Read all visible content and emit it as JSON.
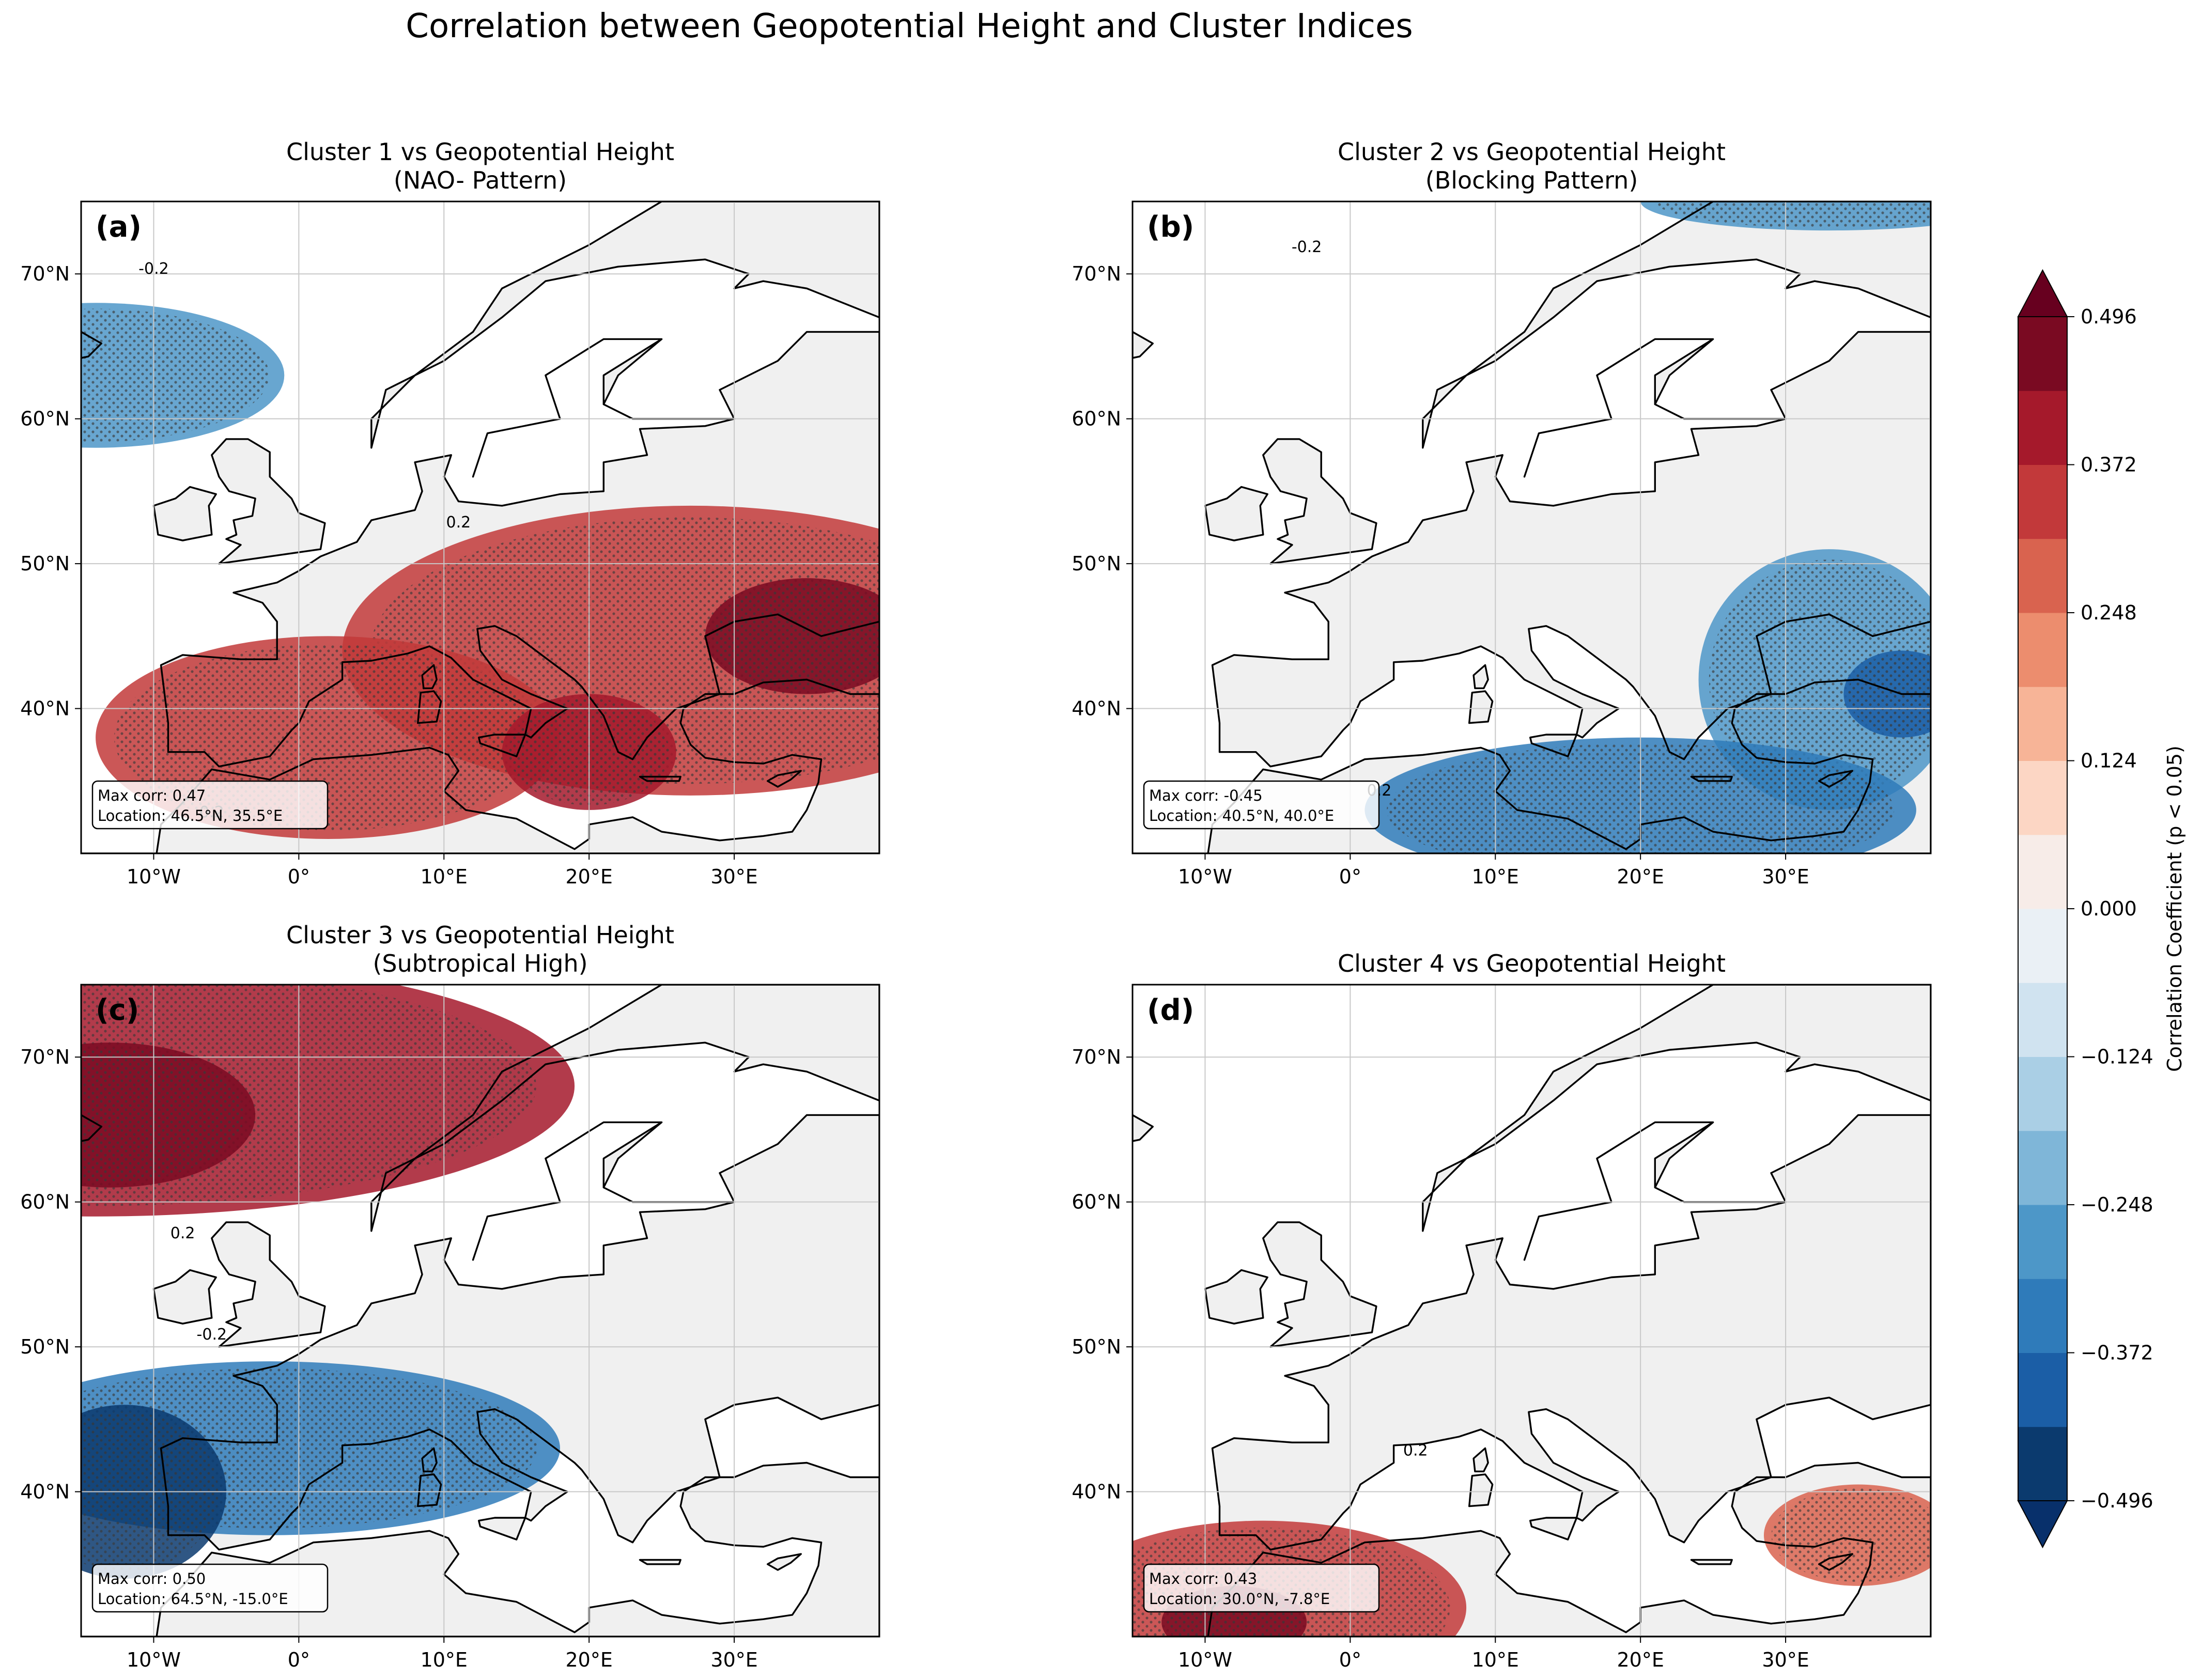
{
  "figure": {
    "title": "Correlation between Geopotential Height and Cluster Indices"
  },
  "map_extent": {
    "lon": [
      -15,
      40
    ],
    "lat": [
      30,
      75
    ]
  },
  "axes": {
    "lon_ticks": [
      {
        "value": -10,
        "label": "10°W"
      },
      {
        "value": 0,
        "label": "0°"
      },
      {
        "value": 10,
        "label": "10°E"
      },
      {
        "value": 20,
        "label": "20°E"
      },
      {
        "value": 30,
        "label": "30°E"
      }
    ],
    "lat_ticks": [
      {
        "value": 40,
        "label": "40°N"
      },
      {
        "value": 50,
        "label": "50°N"
      },
      {
        "value": 60,
        "label": "60°N"
      },
      {
        "value": 70,
        "label": "70°N"
      }
    ],
    "gridlines": true
  },
  "panels": [
    {
      "letter": "(a)",
      "title_line1": "Cluster 1 vs Geopotential Height",
      "title_line2": "(NAO- Pattern)",
      "max_corr_label": "Max corr: 0.47",
      "location_label": "Location: 46.5°N, 35.5°E",
      "contour_labels": [
        {
          "text": "-0.2",
          "lon": -10,
          "lat": 70
        },
        {
          "text": "0.2",
          "lon": 11,
          "lat": 52.5
        },
        {
          "text": "0.2",
          "lon": -6,
          "lat": 32.5
        }
      ],
      "anomalies": [
        {
          "lon": -14,
          "lat": 63,
          "rlon": 13,
          "rlat": 5,
          "value": -0.3,
          "stipple": true
        },
        {
          "lon": 27,
          "lat": 44,
          "rlon": 24,
          "rlat": 10,
          "value": 0.34,
          "stipple": true
        },
        {
          "lon": 2,
          "lat": 38,
          "rlon": 16,
          "rlat": 7,
          "value": 0.32,
          "stipple": true
        },
        {
          "lon": 35,
          "lat": 45,
          "rlon": 7,
          "rlat": 4,
          "value": 0.45,
          "stipple": true
        },
        {
          "lon": 20,
          "lat": 37,
          "rlon": 6,
          "rlat": 4,
          "value": 0.42,
          "stipple": true
        }
      ]
    },
    {
      "letter": "(b)",
      "title_line1": "Cluster 2 vs Geopotential Height",
      "title_line2": "(Blocking Pattern)",
      "max_corr_label": "Max corr: -0.45",
      "location_label": "Location: 40.5°N, 40.0°E",
      "contour_labels": [
        {
          "text": "-0.2",
          "lon": -3,
          "lat": 71.5
        },
        {
          "text": "0.2",
          "lon": 2,
          "lat": 34
        }
      ],
      "anomalies": [
        {
          "lon": 33,
          "lat": 75,
          "rlon": 13,
          "rlat": 2,
          "value": -0.27,
          "stipple": true
        },
        {
          "lon": 33,
          "lat": 42,
          "rlon": 9,
          "rlat": 9,
          "value": -0.3,
          "stipple": true
        },
        {
          "lon": 20,
          "lat": 33,
          "rlon": 19,
          "rlat": 5,
          "value": -0.33,
          "stipple": true
        },
        {
          "lon": 38,
          "lat": 41,
          "rlon": 4,
          "rlat": 3,
          "value": -0.42,
          "stipple": true
        }
      ]
    },
    {
      "letter": "(c)",
      "title_line1": "Cluster 3 vs Geopotential Height",
      "title_line2": "(Subtropical High)",
      "max_corr_label": "Max corr: 0.50",
      "location_label": "Location: 64.5°N, -15.0°E",
      "contour_labels": [
        {
          "text": "0.2",
          "lon": -8,
          "lat": 57.5
        },
        {
          "text": "-0.2",
          "lon": -6,
          "lat": 50.5
        }
      ],
      "anomalies": [
        {
          "lon": -14,
          "lat": 68,
          "rlon": 33,
          "rlat": 9,
          "value": 0.38,
          "stipple": true
        },
        {
          "lon": -13,
          "lat": 66,
          "rlon": 10,
          "rlat": 5,
          "value": 0.47,
          "stipple": true
        },
        {
          "lon": -2,
          "lat": 43,
          "rlon": 20,
          "rlat": 6,
          "value": -0.32,
          "stipple": true
        },
        {
          "lon": -12,
          "lat": 40,
          "rlon": 7,
          "rlat": 6,
          "value": -0.45,
          "stipple": true
        }
      ]
    },
    {
      "letter": "(d)",
      "title_line1": "Cluster 4 vs Geopotential Height",
      "title_line2": "",
      "max_corr_label": "Max corr: 0.43",
      "location_label": "Location: 30.0°N, -7.8°E",
      "contour_labels": [
        {
          "text": "0.2",
          "lon": 4.5,
          "lat": 42.5
        }
      ],
      "anomalies": [
        {
          "lon": -6,
          "lat": 32,
          "rlon": 14,
          "rlat": 6,
          "value": 0.33,
          "stipple": true
        },
        {
          "lon": -8,
          "lat": 31,
          "rlon": 5,
          "rlat": 2.5,
          "value": 0.44,
          "stipple": true
        },
        {
          "lon": 35,
          "lat": 37,
          "rlon": 6.5,
          "rlat": 3.5,
          "value": 0.3,
          "stipple": true
        }
      ]
    }
  ],
  "colorbar": {
    "label": "Correlation Coefficient (p < 0.05)",
    "ticks": [
      "0.496",
      "0.372",
      "0.248",
      "0.124",
      "0.000",
      "−0.124",
      "−0.248",
      "−0.372",
      "−0.496"
    ],
    "levels": [
      -0.496,
      -0.434,
      -0.372,
      -0.31,
      -0.248,
      -0.186,
      -0.124,
      -0.062,
      0,
      0.062,
      0.124,
      0.186,
      0.248,
      0.31,
      0.372,
      0.434,
      0.496
    ],
    "colors": [
      "#0b3a6e",
      "#1b5ea6",
      "#2f7bba",
      "#4d97c8",
      "#7fb6d8",
      "#aacfe5",
      "#d0e3f0",
      "#eaf0f5",
      "#f7ece8",
      "#fcd6c4",
      "#f7b497",
      "#ec8d6e",
      "#d9634f",
      "#c2393a",
      "#a5192b",
      "#7a0a22"
    ],
    "extend_low": "#08306b",
    "extend_high": "#67001f"
  },
  "colors": {
    "land": "#f0f0f0",
    "coast": "#000000",
    "grid": "#c8c8c8",
    "stipple": "#3a3a3a"
  }
}
